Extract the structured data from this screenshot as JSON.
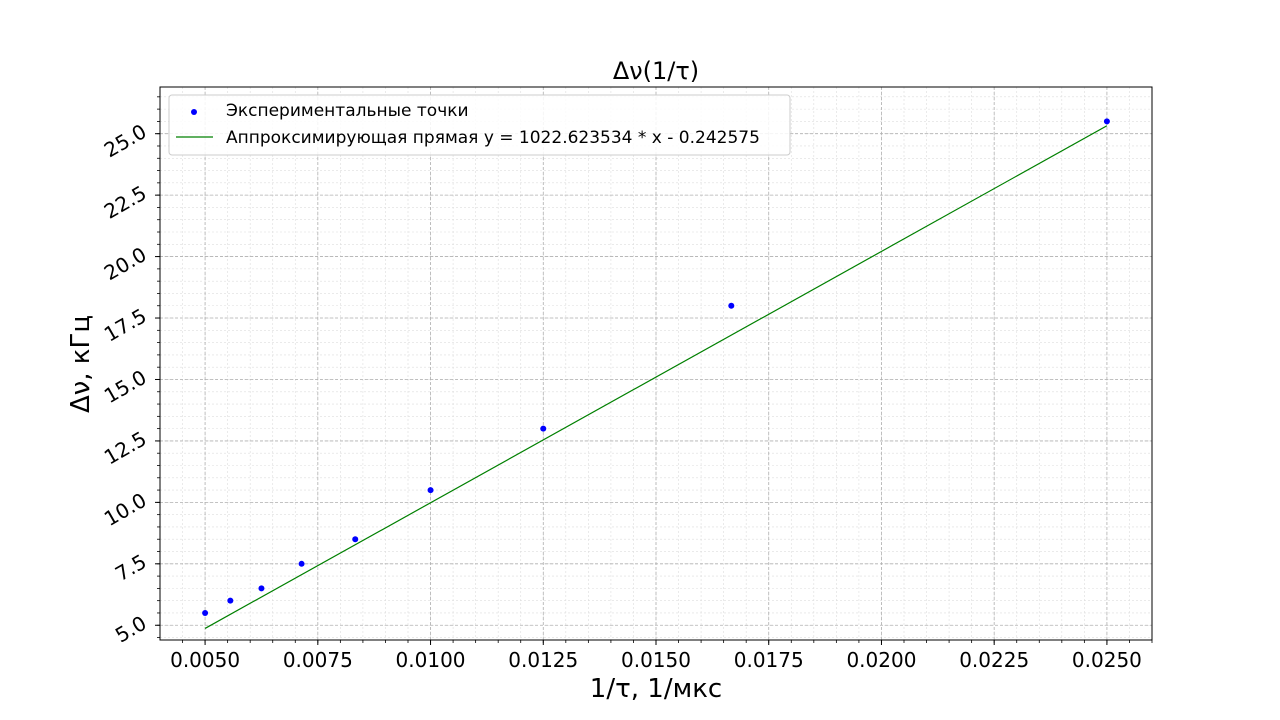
{
  "chart_data": {
    "type": "scatter",
    "title": "Δν(1/τ)",
    "xlabel": "1/τ, 1/мкс",
    "ylabel": "Δν, кГц",
    "xlim": [
      0.004,
      0.026
    ],
    "ylim": [
      4.4,
      26.9
    ],
    "xticks": [
      "0.0050",
      "0.0075",
      "0.0100",
      "0.0125",
      "0.0150",
      "0.0175",
      "0.0200",
      "0.0225",
      "0.0250"
    ],
    "yticks": [
      "5.0",
      "7.5",
      "10.0",
      "12.5",
      "15.0",
      "17.5",
      "20.0",
      "22.5",
      "25.0"
    ],
    "grid": true,
    "legend_position": "top-left",
    "series": [
      {
        "name": "Экспериментальные точки",
        "kind": "scatter",
        "color": "#0000ff",
        "x": [
          0.005,
          0.00556,
          0.00625,
          0.00714,
          0.00833,
          0.01,
          0.0125,
          0.01667,
          0.025
        ],
        "y": [
          5.5,
          6.0,
          6.5,
          7.5,
          8.5,
          10.5,
          13.0,
          18.0,
          25.5
        ]
      },
      {
        "name": "Аппроксимирующая прямая y = 1022.623534 * x - 0.242575",
        "kind": "line",
        "color": "#008000",
        "x": [
          0.005,
          0.025
        ],
        "y": [
          4.870543,
          25.323013
        ]
      }
    ]
  }
}
